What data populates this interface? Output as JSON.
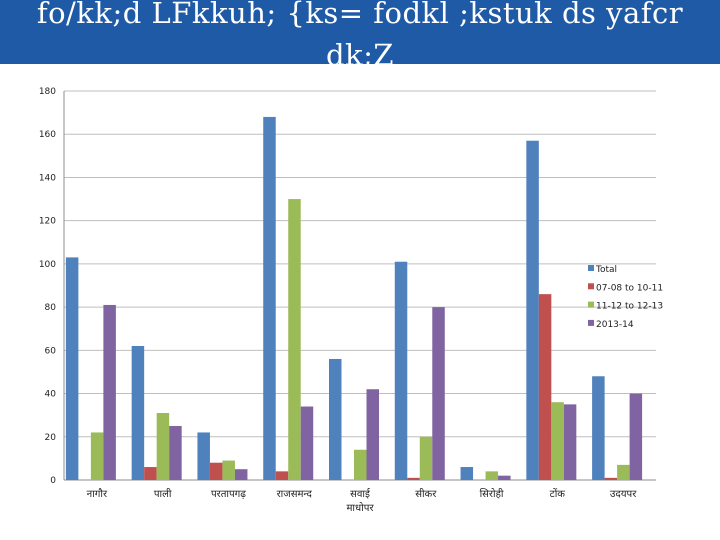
{
  "slide": {
    "title": "fo/kk;d LFkkuh; {ks= fodkl ;kstuk ds yafcr dk;Z"
  },
  "chart_data": {
    "type": "bar",
    "categories": [
      "नागौर",
      "पाली",
      "परतापगढ़",
      "राजसमन्द",
      "सवाई माधोपर",
      "सीकर",
      "सिरोही",
      "टोंक",
      "उदयपर"
    ],
    "series": [
      {
        "name": "Total",
        "color": "#4f81bd",
        "values": [
          103,
          62,
          22,
          168,
          56,
          101,
          6,
          157,
          48
        ]
      },
      {
        "name": "07-08 to 10-11",
        "color": "#c0504d",
        "values": [
          0,
          6,
          8,
          4,
          0,
          1,
          0,
          86,
          1
        ]
      },
      {
        "name": "11-12 to 12-13",
        "color": "#9bbb59",
        "values": [
          22,
          31,
          9,
          130,
          14,
          20,
          4,
          36,
          7
        ]
      },
      {
        "name": "2013-14",
        "color": "#8064a2",
        "values": [
          81,
          25,
          5,
          34,
          42,
          80,
          2,
          35,
          40
        ]
      }
    ],
    "ylim": [
      0,
      180
    ],
    "yticks": [
      0,
      20,
      40,
      60,
      80,
      100,
      120,
      140,
      160,
      180
    ],
    "grid": true,
    "legend": "right",
    "title": "",
    "xlabel": "",
    "ylabel": ""
  }
}
